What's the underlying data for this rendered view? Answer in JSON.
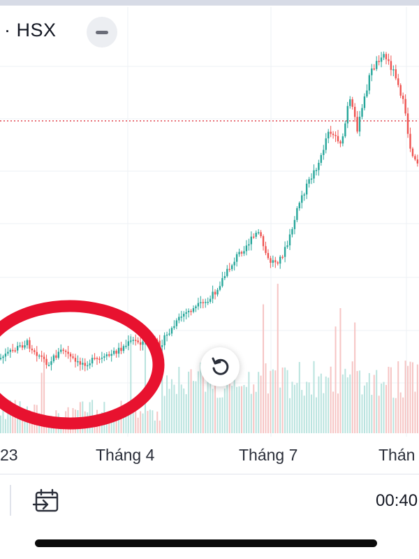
{
  "header": {
    "exchange_label": "· HSX"
  },
  "chart_data": {
    "type": "candlestick",
    "x_ticks": [
      "23",
      "Tháng 4",
      "Tháng 7",
      "Thán"
    ],
    "colors": {
      "up": "#26a69a",
      "down": "#ef5350",
      "volume_up": "#b9e3de",
      "volume_down": "#f6c4c3",
      "grid": "#eef0f4",
      "price_line": "#e0424b",
      "highlight_circle": "#e8122f"
    },
    "annotation": "red circle highlighting sideways price range"
  },
  "toolbar": {
    "clock": "00:40"
  },
  "icons": {
    "collapse": "minus-icon",
    "reset": "rotate-left-icon",
    "goto_date": "calendar-arrow-icon"
  }
}
